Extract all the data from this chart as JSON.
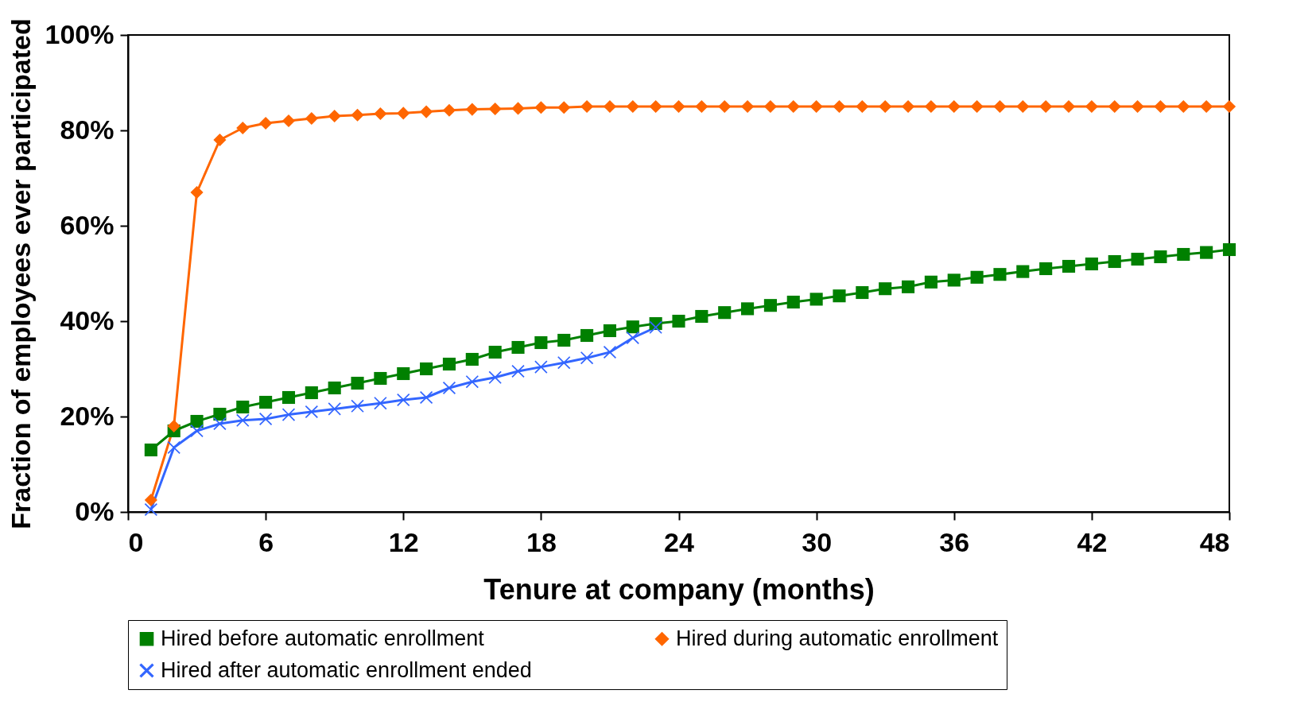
{
  "chart_data": {
    "type": "line",
    "xlabel": "Tenure at company (months)",
    "ylabel": "Fraction of employees ever participated",
    "xlim": [
      0,
      48
    ],
    "xticks": [
      0,
      6,
      12,
      18,
      24,
      30,
      36,
      42,
      48
    ],
    "ylim": [
      0,
      100
    ],
    "yticks": [
      {
        "value": 0,
        "label": "0%"
      },
      {
        "value": 20,
        "label": "20%"
      },
      {
        "value": 40,
        "label": "40%"
      },
      {
        "value": 60,
        "label": "60%"
      },
      {
        "value": 80,
        "label": "80%"
      },
      {
        "value": 100,
        "label": "100%"
      }
    ],
    "grid": false,
    "legend": "bottom",
    "series": [
      {
        "name": "Hired before automatic enrollment",
        "color": "#008000",
        "marker": "square",
        "x": [
          1,
          2,
          3,
          4,
          5,
          6,
          7,
          8,
          9,
          10,
          11,
          12,
          13,
          14,
          15,
          16,
          17,
          18,
          19,
          20,
          21,
          22,
          23,
          24,
          25,
          26,
          27,
          28,
          29,
          30,
          31,
          32,
          33,
          34,
          35,
          36,
          37,
          38,
          39,
          40,
          41,
          42,
          43,
          44,
          45,
          46,
          47,
          48
        ],
        "values": [
          13,
          17,
          19,
          20.5,
          22,
          23,
          24,
          25,
          26,
          27,
          28,
          29,
          30,
          31,
          32,
          33.5,
          34.5,
          35.5,
          36,
          37,
          38,
          38.8,
          39.5,
          40,
          41,
          41.8,
          42.6,
          43.3,
          44,
          44.6,
          45.3,
          46,
          46.8,
          47.2,
          48.2,
          48.6,
          49.2,
          49.8,
          50.4,
          51,
          51.5,
          52,
          52.5,
          53,
          53.5,
          54,
          54.4,
          55
        ]
      },
      {
        "name": "Hired during automatic enrollment",
        "color": "#ff6600",
        "marker": "diamond",
        "x": [
          1,
          2,
          3,
          4,
          5,
          6,
          7,
          8,
          9,
          10,
          11,
          12,
          13,
          14,
          15,
          16,
          17,
          18,
          19,
          20,
          21,
          22,
          23,
          24,
          25,
          26,
          27,
          28,
          29,
          30,
          31,
          32,
          33,
          34,
          35,
          36,
          37,
          38,
          39,
          40,
          41,
          42,
          43,
          44,
          45,
          46,
          47,
          48
        ],
        "values": [
          2.5,
          18,
          67,
          78,
          80.5,
          81.5,
          82,
          82.5,
          83,
          83.2,
          83.5,
          83.6,
          83.9,
          84.2,
          84.4,
          84.5,
          84.6,
          84.8,
          84.8,
          85,
          85,
          85,
          85,
          85,
          85,
          85,
          85,
          85,
          85,
          85,
          85,
          85,
          85,
          85,
          85,
          85,
          85,
          85,
          85,
          85,
          85,
          85,
          85,
          85,
          85,
          85,
          85,
          85
        ]
      },
      {
        "name": "Hired after automatic enrollment ended",
        "color": "#3366ff",
        "marker": "cross",
        "x": [
          1,
          2,
          3,
          4,
          5,
          6,
          7,
          8,
          9,
          10,
          11,
          12,
          13,
          14,
          15,
          16,
          17,
          18,
          19,
          20,
          21,
          22,
          23
        ],
        "values": [
          0.5,
          13.5,
          17,
          18.5,
          19.2,
          19.5,
          20.4,
          21,
          21.6,
          22.2,
          22.8,
          23.5,
          24,
          26,
          27.3,
          28.2,
          29.5,
          30.4,
          31.3,
          32.3,
          33.5,
          36.5,
          38.7
        ]
      }
    ]
  }
}
